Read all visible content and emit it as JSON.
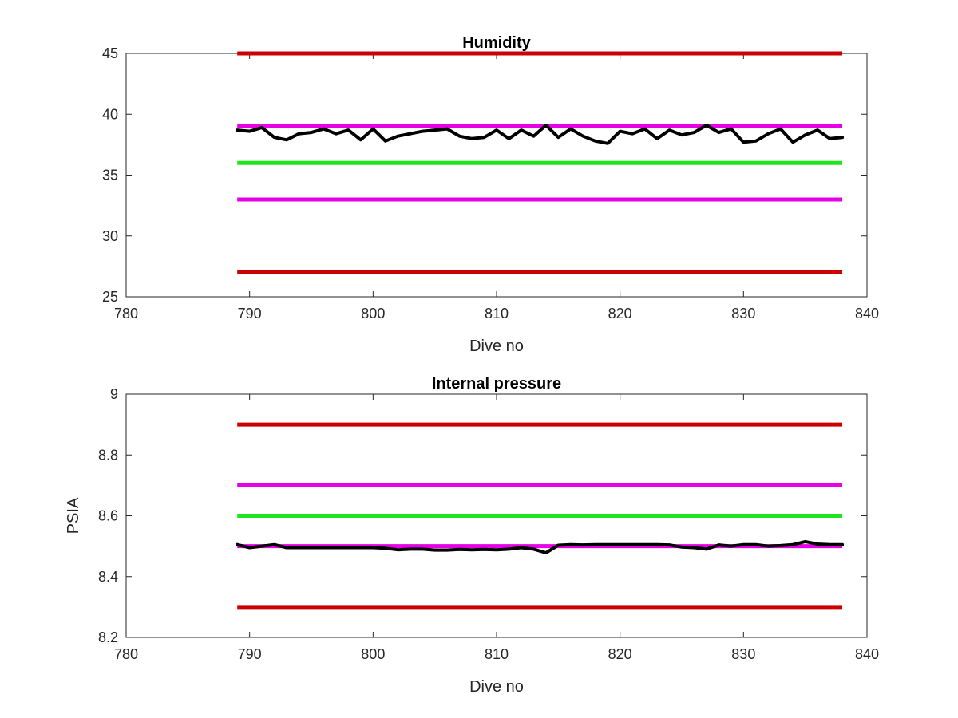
{
  "chart_data": [
    {
      "type": "line",
      "title": "Humidity",
      "xlabel": "Dive no",
      "ylabel": "",
      "xlim": [
        780,
        840
      ],
      "ylim": [
        25,
        45
      ],
      "xticks": [
        780,
        790,
        800,
        810,
        820,
        830,
        840
      ],
      "yticks": [
        25,
        30,
        35,
        40,
        45
      ],
      "grid": false,
      "thresholds": [
        {
          "value": 45,
          "x": [
            789,
            838
          ],
          "color": "#cc0000"
        },
        {
          "value": 39,
          "x": [
            789,
            838
          ],
          "color": "#e600e6"
        },
        {
          "value": 36,
          "x": [
            789,
            838
          ],
          "color": "#1ee61e"
        },
        {
          "value": 33,
          "x": [
            789,
            838
          ],
          "color": "#e600e6"
        },
        {
          "value": 27,
          "x": [
            789,
            838
          ],
          "color": "#cc0000"
        }
      ],
      "series": [
        {
          "color": "#000000",
          "x": [
            789,
            790,
            791,
            792,
            793,
            794,
            795,
            796,
            797,
            798,
            799,
            800,
            801,
            802,
            803,
            804,
            805,
            806,
            807,
            808,
            809,
            810,
            811,
            812,
            813,
            814,
            815,
            816,
            817,
            818,
            819,
            820,
            821,
            822,
            823,
            824,
            825,
            826,
            827,
            828,
            829,
            830,
            831,
            832,
            833,
            834,
            835,
            836,
            837,
            838
          ],
          "values": [
            38.7,
            38.6,
            38.9,
            38.1,
            37.9,
            38.4,
            38.5,
            38.8,
            38.4,
            38.7,
            37.9,
            38.8,
            37.8,
            38.2,
            38.4,
            38.6,
            38.7,
            38.8,
            38.2,
            38.0,
            38.1,
            38.7,
            38.0,
            38.7,
            38.2,
            39.1,
            38.1,
            38.8,
            38.2,
            37.8,
            37.6,
            38.6,
            38.4,
            38.8,
            38.0,
            38.7,
            38.3,
            38.5,
            39.1,
            38.5,
            38.8,
            37.7,
            37.8,
            38.4,
            38.8,
            37.7,
            38.3,
            38.7,
            38.0,
            38.1
          ]
        }
      ]
    },
    {
      "type": "line",
      "title": "Internal pressure",
      "xlabel": "Dive no",
      "ylabel": "PSIA",
      "xlim": [
        780,
        840
      ],
      "ylim": [
        8.2,
        9
      ],
      "xticks": [
        780,
        790,
        800,
        810,
        820,
        830,
        840
      ],
      "yticks": [
        8.2,
        8.4,
        8.6,
        8.8,
        9
      ],
      "grid": false,
      "thresholds": [
        {
          "value": 8.9,
          "x": [
            789,
            838
          ],
          "color": "#cc0000"
        },
        {
          "value": 8.7,
          "x": [
            789,
            838
          ],
          "color": "#e600e6"
        },
        {
          "value": 8.6,
          "x": [
            789,
            838
          ],
          "color": "#1ee61e"
        },
        {
          "value": 8.5,
          "x": [
            789,
            838
          ],
          "color": "#e600e6"
        },
        {
          "value": 8.3,
          "x": [
            789,
            838
          ],
          "color": "#cc0000"
        }
      ],
      "series": [
        {
          "color": "#000000",
          "x": [
            789,
            790,
            791,
            792,
            793,
            794,
            795,
            796,
            797,
            798,
            799,
            800,
            801,
            802,
            803,
            804,
            805,
            806,
            807,
            808,
            809,
            810,
            811,
            812,
            813,
            814,
            815,
            816,
            817,
            818,
            819,
            820,
            821,
            822,
            823,
            824,
            825,
            826,
            827,
            828,
            829,
            830,
            831,
            832,
            833,
            834,
            835,
            836,
            837,
            838
          ],
          "values": [
            8.505,
            8.495,
            8.5,
            8.505,
            8.495,
            8.495,
            8.495,
            8.495,
            8.495,
            8.495,
            8.495,
            8.495,
            8.493,
            8.488,
            8.49,
            8.49,
            8.487,
            8.487,
            8.489,
            8.488,
            8.489,
            8.488,
            8.49,
            8.495,
            8.49,
            8.478,
            8.503,
            8.505,
            8.504,
            8.505,
            8.505,
            8.505,
            8.505,
            8.505,
            8.505,
            8.504,
            8.497,
            8.495,
            8.49,
            8.504,
            8.5,
            8.505,
            8.505,
            8.5,
            8.502,
            8.505,
            8.515,
            8.507,
            8.505,
            8.505
          ]
        }
      ]
    }
  ]
}
